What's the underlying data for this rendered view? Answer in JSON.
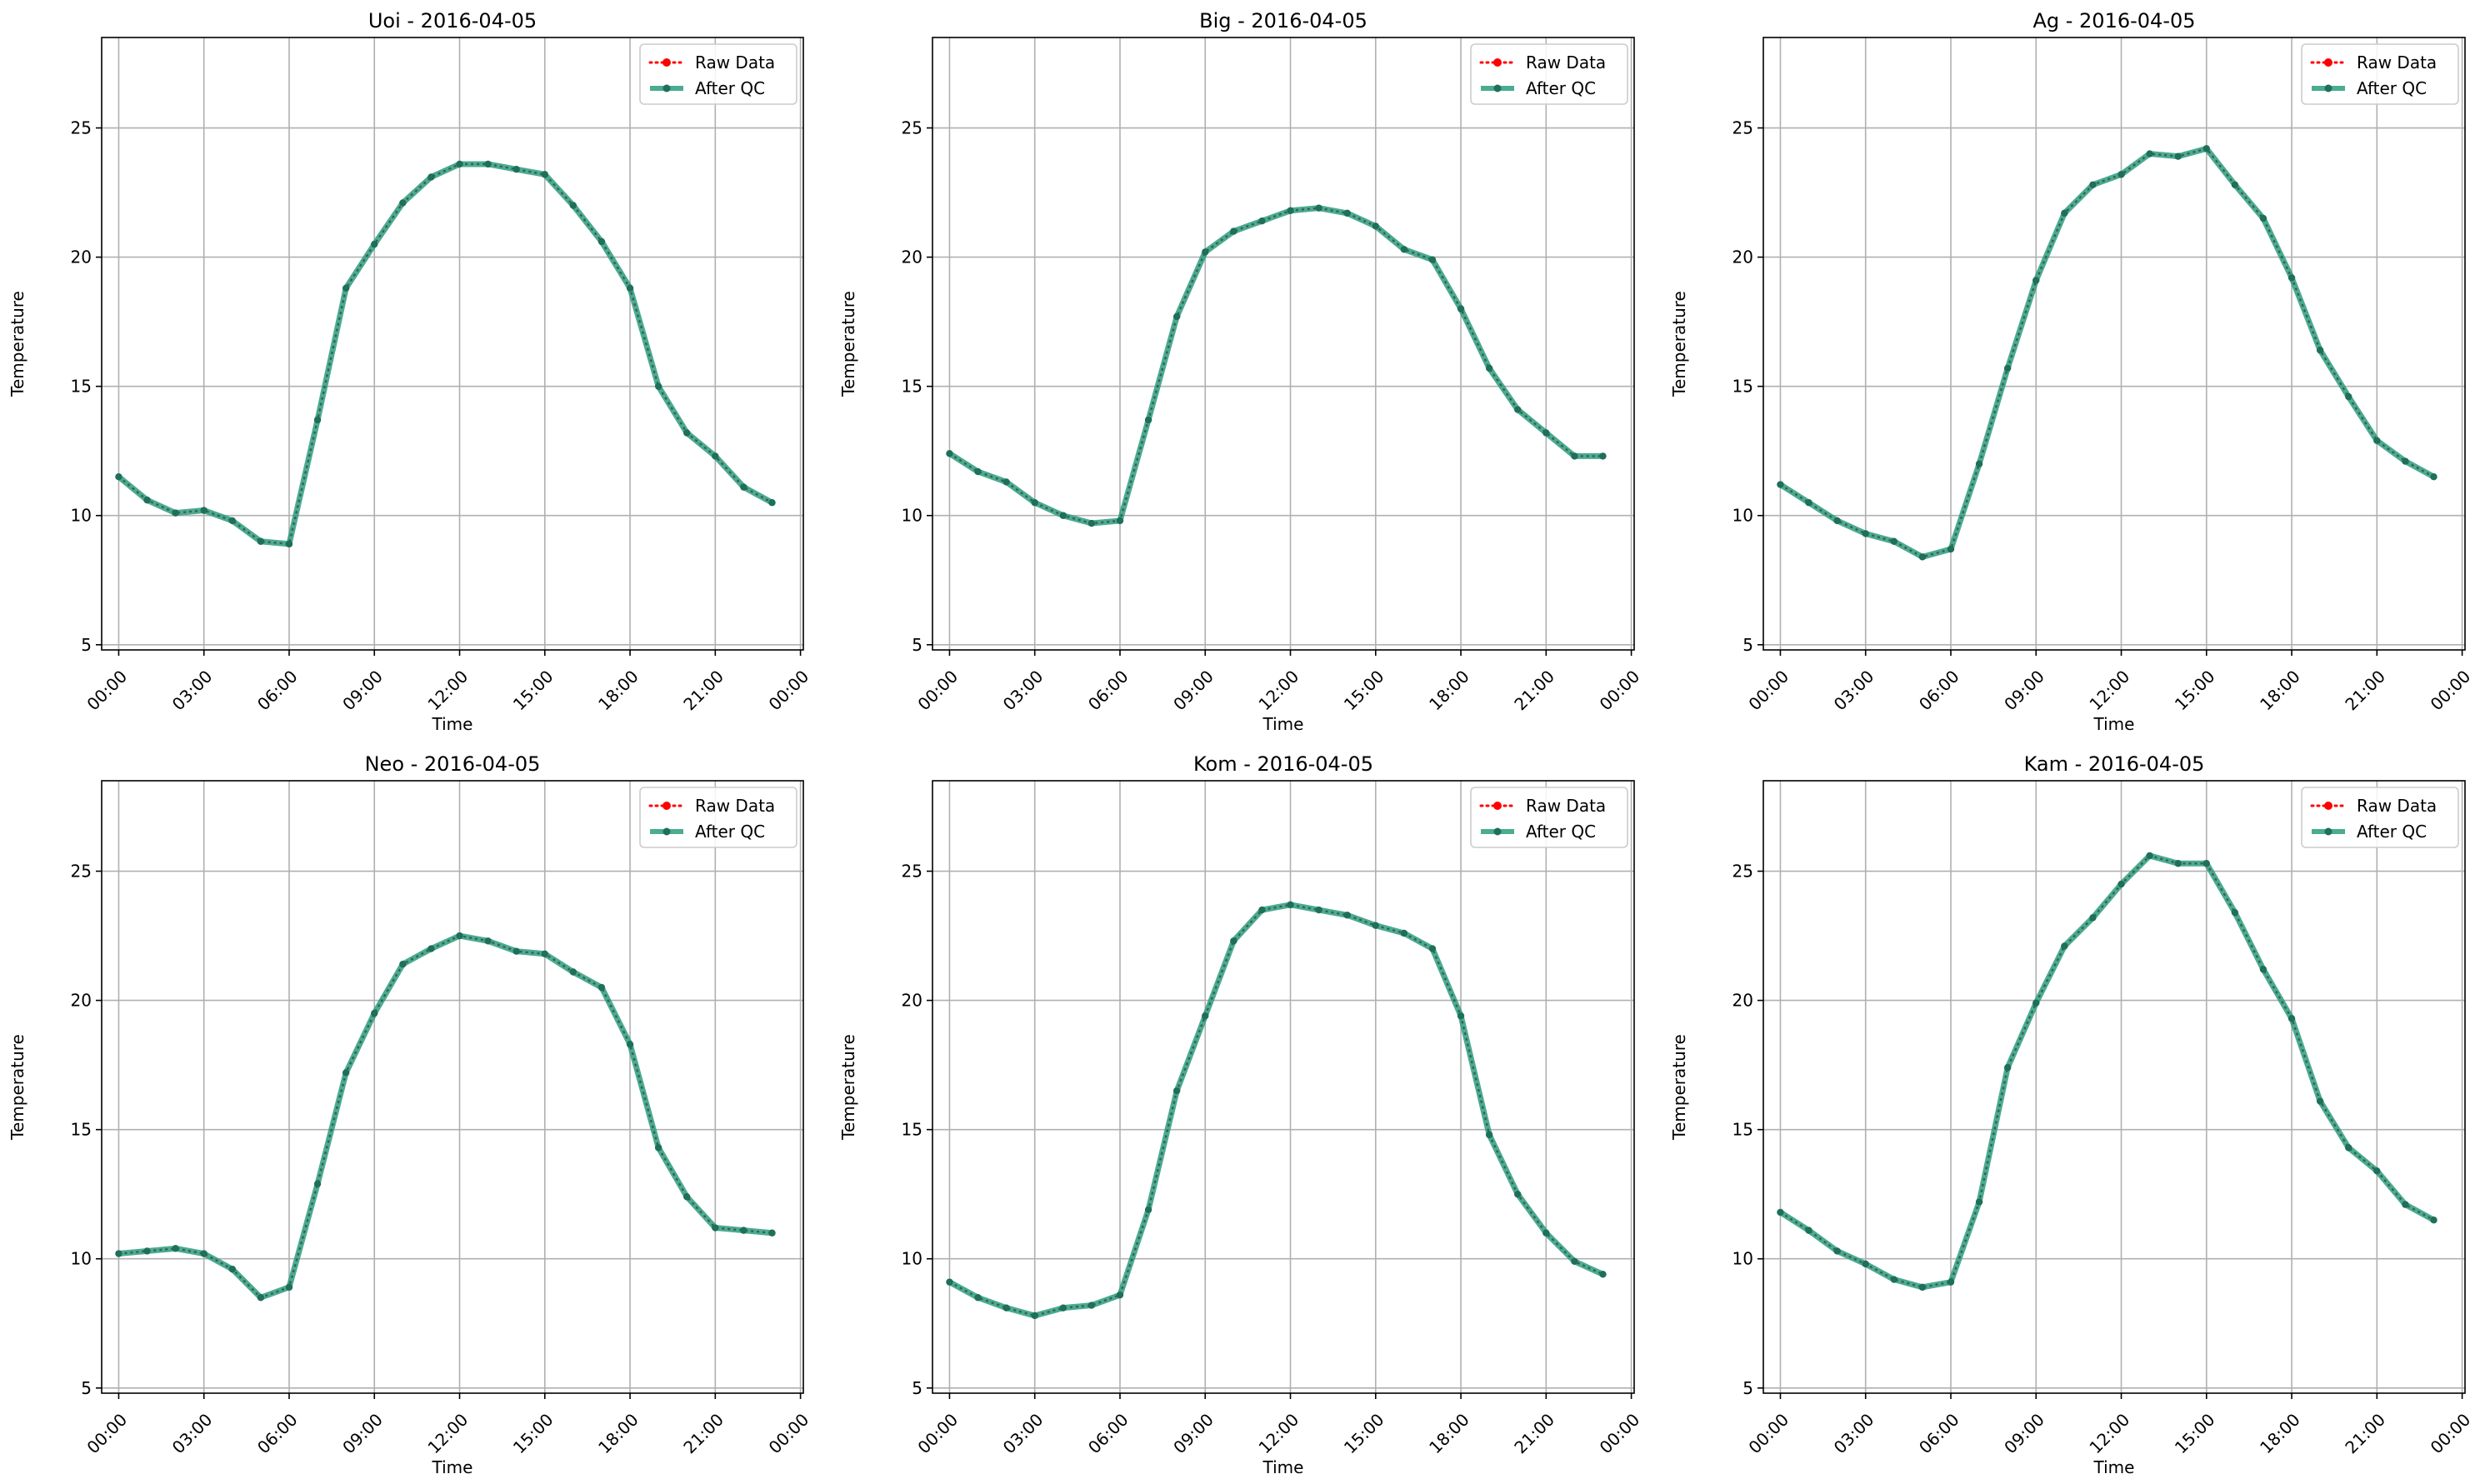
{
  "legend": {
    "raw_label": "Raw Data",
    "qc_label": "After QC"
  },
  "colors": {
    "raw": "#ff0000",
    "qc": "#2a9d7c",
    "qc_marker": "#1f6f5a",
    "grid": "#b0b0b0",
    "axes": "#000000"
  },
  "chart_data": [
    {
      "type": "line",
      "title": "Uoi - 2016-04-05",
      "xlabel": "Time",
      "ylabel": "Temperature",
      "xticks": [
        "00:00",
        "03:00",
        "06:00",
        "09:00",
        "12:00",
        "15:00",
        "18:00",
        "21:00",
        "00:00"
      ],
      "yticks": [
        5,
        10,
        15,
        20,
        25
      ],
      "ylim": [
        4.8,
        28.5
      ],
      "xlim_hours": [
        -0.6,
        24.1
      ],
      "grid": true,
      "legend_position": "upper-right",
      "x_hours": [
        0,
        1,
        2,
        3,
        4,
        5,
        6,
        7,
        8,
        9,
        10,
        11,
        12,
        13,
        14,
        15,
        16,
        17,
        18,
        19,
        20,
        21,
        22,
        23
      ],
      "series": [
        {
          "name": "Raw Data",
          "values": [
            11.5,
            10.6,
            10.1,
            10.2,
            9.8,
            9.0,
            8.9,
            13.7,
            18.8,
            20.5,
            22.1,
            23.1,
            23.6,
            23.6,
            23.4,
            23.2,
            22.0,
            20.6,
            18.8,
            15.0,
            13.2,
            12.3,
            11.1,
            10.5
          ]
        },
        {
          "name": "After QC",
          "values": [
            11.5,
            10.6,
            10.1,
            10.2,
            9.8,
            9.0,
            8.9,
            13.7,
            18.8,
            20.5,
            22.1,
            23.1,
            23.6,
            23.6,
            23.4,
            23.2,
            22.0,
            20.6,
            18.8,
            15.0,
            13.2,
            12.3,
            11.1,
            10.5
          ]
        }
      ]
    },
    {
      "type": "line",
      "title": "Big - 2016-04-05",
      "xlabel": "Time",
      "ylabel": "Temperature",
      "xticks": [
        "00:00",
        "03:00",
        "06:00",
        "09:00",
        "12:00",
        "15:00",
        "18:00",
        "21:00",
        "00:00"
      ],
      "yticks": [
        5,
        10,
        15,
        20,
        25
      ],
      "ylim": [
        4.8,
        28.5
      ],
      "xlim_hours": [
        -0.6,
        24.1
      ],
      "grid": true,
      "legend_position": "upper-right",
      "x_hours": [
        0,
        1,
        2,
        3,
        4,
        5,
        6,
        7,
        8,
        9,
        10,
        11,
        12,
        13,
        14,
        15,
        16,
        17,
        18,
        19,
        20,
        21,
        22,
        23
      ],
      "series": [
        {
          "name": "Raw Data",
          "values": [
            12.4,
            11.7,
            11.3,
            10.5,
            10.0,
            9.7,
            9.8,
            13.7,
            17.7,
            20.2,
            21.0,
            21.4,
            21.8,
            21.9,
            21.7,
            21.2,
            20.3,
            19.9,
            18.0,
            15.7,
            14.1,
            13.2,
            12.3,
            12.3
          ]
        },
        {
          "name": "After QC",
          "values": [
            12.4,
            11.7,
            11.3,
            10.5,
            10.0,
            9.7,
            9.8,
            13.7,
            17.7,
            20.2,
            21.0,
            21.4,
            21.8,
            21.9,
            21.7,
            21.2,
            20.3,
            19.9,
            18.0,
            15.7,
            14.1,
            13.2,
            12.3,
            12.3
          ]
        }
      ]
    },
    {
      "type": "line",
      "title": "Ag - 2016-04-05",
      "xlabel": "Time",
      "ylabel": "Temperature",
      "xticks": [
        "00:00",
        "03:00",
        "06:00",
        "09:00",
        "12:00",
        "15:00",
        "18:00",
        "21:00",
        "00:00"
      ],
      "yticks": [
        5,
        10,
        15,
        20,
        25
      ],
      "ylim": [
        4.8,
        28.5
      ],
      "xlim_hours": [
        -0.6,
        24.1
      ],
      "grid": true,
      "legend_position": "upper-right",
      "x_hours": [
        0,
        1,
        2,
        3,
        4,
        5,
        6,
        7,
        8,
        9,
        10,
        11,
        12,
        13,
        14,
        15,
        16,
        17,
        18,
        19,
        20,
        21,
        22,
        23
      ],
      "series": [
        {
          "name": "Raw Data",
          "values": [
            11.2,
            10.5,
            9.8,
            9.3,
            9.0,
            8.4,
            8.7,
            12.0,
            15.7,
            19.1,
            21.7,
            22.8,
            23.2,
            24.0,
            23.9,
            24.2,
            22.8,
            21.5,
            19.2,
            16.4,
            14.6,
            12.9,
            12.1,
            11.5
          ]
        },
        {
          "name": "After QC",
          "values": [
            11.2,
            10.5,
            9.8,
            9.3,
            9.0,
            8.4,
            8.7,
            12.0,
            15.7,
            19.1,
            21.7,
            22.8,
            23.2,
            24.0,
            23.9,
            24.2,
            22.8,
            21.5,
            19.2,
            16.4,
            14.6,
            12.9,
            12.1,
            11.5
          ]
        }
      ]
    },
    {
      "type": "line",
      "title": "Neo - 2016-04-05",
      "xlabel": "Time",
      "ylabel": "Temperature",
      "xticks": [
        "00:00",
        "03:00",
        "06:00",
        "09:00",
        "12:00",
        "15:00",
        "18:00",
        "21:00",
        "00:00"
      ],
      "yticks": [
        5,
        10,
        15,
        20,
        25
      ],
      "ylim": [
        4.8,
        28.5
      ],
      "xlim_hours": [
        -0.6,
        24.1
      ],
      "grid": true,
      "legend_position": "upper-right",
      "x_hours": [
        0,
        1,
        2,
        3,
        4,
        5,
        6,
        7,
        8,
        9,
        10,
        11,
        12,
        13,
        14,
        15,
        16,
        17,
        18,
        19,
        20,
        21,
        22,
        23
      ],
      "series": [
        {
          "name": "Raw Data",
          "values": [
            10.2,
            10.3,
            10.4,
            10.2,
            9.6,
            8.5,
            8.9,
            12.9,
            17.2,
            19.5,
            21.4,
            22.0,
            22.5,
            22.3,
            21.9,
            21.8,
            21.1,
            20.5,
            18.3,
            14.3,
            12.4,
            11.2,
            11.1,
            11.0
          ]
        },
        {
          "name": "After QC",
          "values": [
            10.2,
            10.3,
            10.4,
            10.2,
            9.6,
            8.5,
            8.9,
            12.9,
            17.2,
            19.5,
            21.4,
            22.0,
            22.5,
            22.3,
            21.9,
            21.8,
            21.1,
            20.5,
            18.3,
            14.3,
            12.4,
            11.2,
            11.1,
            11.0
          ]
        }
      ]
    },
    {
      "type": "line",
      "title": "Kom - 2016-04-05",
      "xlabel": "Time",
      "ylabel": "Temperature",
      "xticks": [
        "00:00",
        "03:00",
        "06:00",
        "09:00",
        "12:00",
        "15:00",
        "18:00",
        "21:00",
        "00:00"
      ],
      "yticks": [
        5,
        10,
        15,
        20,
        25
      ],
      "ylim": [
        4.8,
        28.5
      ],
      "xlim_hours": [
        -0.6,
        24.1
      ],
      "grid": true,
      "legend_position": "upper-right",
      "x_hours": [
        0,
        1,
        2,
        3,
        4,
        5,
        6,
        7,
        8,
        9,
        10,
        11,
        12,
        13,
        14,
        15,
        16,
        17,
        18,
        19,
        20,
        21,
        22,
        23
      ],
      "series": [
        {
          "name": "Raw Data",
          "values": [
            9.1,
            8.5,
            8.1,
            7.8,
            8.1,
            8.2,
            8.6,
            11.9,
            16.5,
            19.4,
            22.3,
            23.5,
            23.7,
            23.5,
            23.3,
            22.9,
            22.6,
            22.0,
            19.4,
            14.8,
            12.5,
            11.0,
            9.9,
            9.4
          ]
        },
        {
          "name": "After QC",
          "values": [
            9.1,
            8.5,
            8.1,
            7.8,
            8.1,
            8.2,
            8.6,
            11.9,
            16.5,
            19.4,
            22.3,
            23.5,
            23.7,
            23.5,
            23.3,
            22.9,
            22.6,
            22.0,
            19.4,
            14.8,
            12.5,
            11.0,
            9.9,
            9.4
          ]
        }
      ]
    },
    {
      "type": "line",
      "title": "Kam - 2016-04-05",
      "xlabel": "Time",
      "ylabel": "Temperature",
      "xticks": [
        "00:00",
        "03:00",
        "06:00",
        "09:00",
        "12:00",
        "15:00",
        "18:00",
        "21:00",
        "00:00"
      ],
      "yticks": [
        5,
        10,
        15,
        20,
        25
      ],
      "ylim": [
        4.8,
        28.5
      ],
      "xlim_hours": [
        -0.6,
        24.1
      ],
      "grid": true,
      "legend_position": "upper-right",
      "x_hours": [
        0,
        1,
        2,
        3,
        4,
        5,
        6,
        7,
        8,
        9,
        10,
        11,
        12,
        13,
        14,
        15,
        16,
        17,
        18,
        19,
        20,
        21,
        22,
        23
      ],
      "series": [
        {
          "name": "Raw Data",
          "values": [
            11.8,
            11.1,
            10.3,
            9.8,
            9.2,
            8.9,
            9.1,
            12.2,
            17.4,
            19.9,
            22.1,
            23.2,
            24.5,
            25.6,
            25.3,
            25.3,
            23.4,
            21.2,
            19.3,
            16.1,
            14.3,
            13.4,
            12.1,
            11.5
          ]
        },
        {
          "name": "After QC",
          "values": [
            11.8,
            11.1,
            10.3,
            9.8,
            9.2,
            8.9,
            9.1,
            12.2,
            17.4,
            19.9,
            22.1,
            23.2,
            24.5,
            25.6,
            25.3,
            25.3,
            23.4,
            21.2,
            19.3,
            16.1,
            14.3,
            13.4,
            12.1,
            11.5
          ]
        }
      ]
    }
  ]
}
